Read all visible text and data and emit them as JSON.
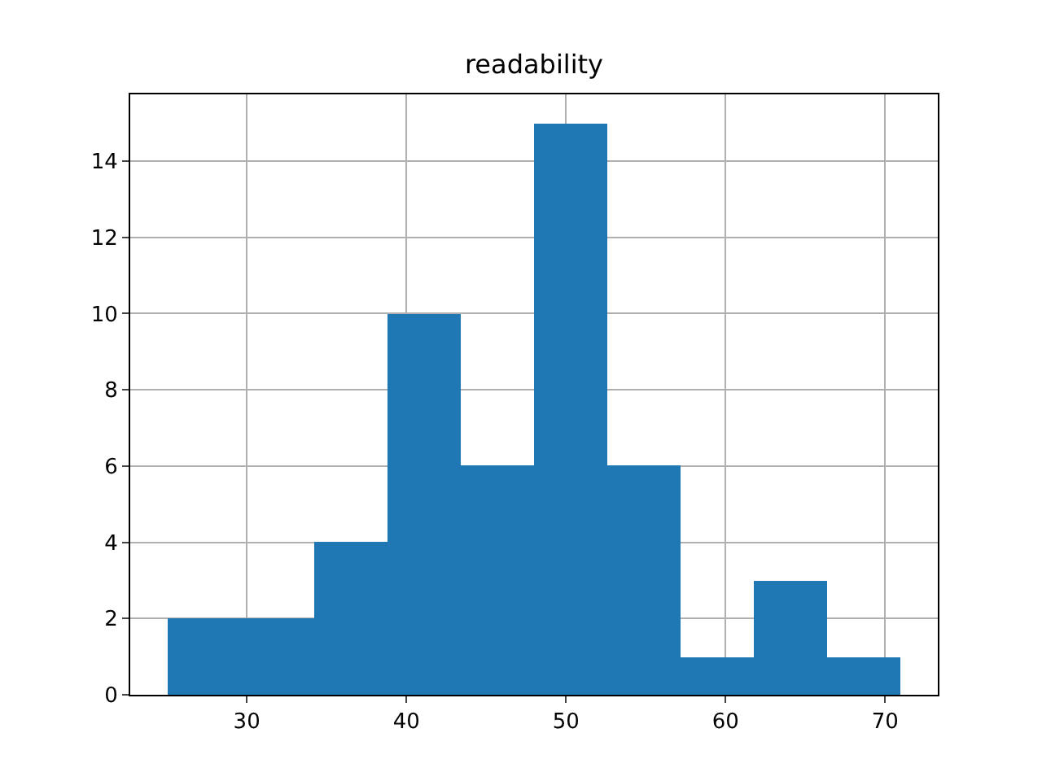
{
  "chart_data": {
    "type": "histogram",
    "title": "readability",
    "bins": [
      25,
      29.6,
      34.2,
      38.8,
      43.4,
      48,
      52.6,
      57.2,
      61.8,
      66.4,
      71
    ],
    "values": [
      2,
      2,
      4,
      10,
      6,
      15,
      6,
      1,
      3,
      1
    ],
    "color": "#1f77b4",
    "xlim": [
      22.7,
      73.3
    ],
    "xticks": [
      30,
      40,
      50,
      60,
      70
    ],
    "ylim": [
      0,
      15.75
    ],
    "yticks": [
      0,
      2,
      4,
      6,
      8,
      10,
      12,
      14
    ],
    "grid": true
  }
}
